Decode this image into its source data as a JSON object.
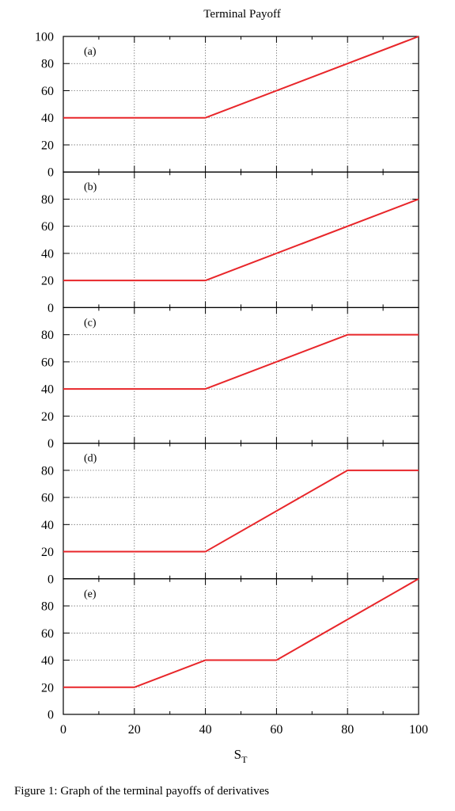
{
  "chart_data": {
    "type": "line",
    "title": "Terminal Payoff",
    "xlabel": "S",
    "xlabel_subscript": "T",
    "xlim": [
      0,
      100
    ],
    "x_ticks": [
      "0",
      "20",
      "40",
      "60",
      "80",
      "100"
    ],
    "grid": true,
    "line_color": "#e8262a",
    "panels": [
      {
        "label": "(a)",
        "ylim": [
          0,
          100
        ],
        "y_ticks": [
          "0",
          "20",
          "40",
          "60",
          "80",
          "100"
        ],
        "x": [
          0,
          40,
          100
        ],
        "y": [
          40,
          40,
          100
        ]
      },
      {
        "label": "(b)",
        "ylim": [
          0,
          100
        ],
        "y_ticks": [
          "0",
          "20",
          "40",
          "60",
          "80"
        ],
        "x": [
          0,
          40,
          100
        ],
        "y": [
          20,
          20,
          80
        ]
      },
      {
        "label": "(c)",
        "ylim": [
          0,
          100
        ],
        "y_ticks": [
          "0",
          "20",
          "40",
          "60",
          "80"
        ],
        "x": [
          0,
          40,
          80,
          100
        ],
        "y": [
          40,
          40,
          80,
          80
        ]
      },
      {
        "label": "(d)",
        "ylim": [
          0,
          100
        ],
        "y_ticks": [
          "0",
          "20",
          "40",
          "60",
          "80"
        ],
        "x": [
          0,
          40,
          80,
          100
        ],
        "y": [
          20,
          20,
          80,
          80
        ]
      },
      {
        "label": "(e)",
        "ylim": [
          0,
          100
        ],
        "y_ticks": [
          "0",
          "20",
          "40",
          "60",
          "80"
        ],
        "x": [
          0,
          20,
          40,
          60,
          100
        ],
        "y": [
          20,
          20,
          40,
          40,
          100
        ]
      }
    ]
  },
  "caption": "Figure 1: Graph of the terminal payoffs of derivatives"
}
